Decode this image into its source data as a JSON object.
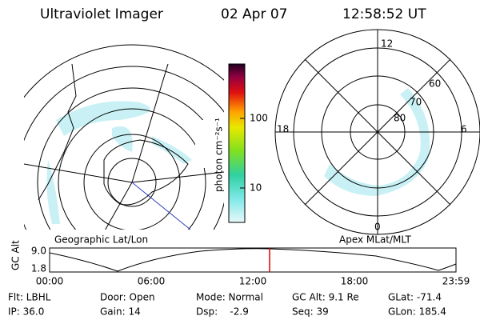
{
  "header": {
    "title": "Ultraviolet Imager",
    "date": "02 Apr 07",
    "time": "12:58:52 UT"
  },
  "colorbar": {
    "label": "photon cm⁻²s⁻¹",
    "ticks": [
      "100",
      "10"
    ]
  },
  "maps": {
    "left_label": "Geographic Lat/Lon",
    "right_label": "Apex MLat/MLT",
    "mlt_labels": [
      "12",
      "18",
      "6",
      "0"
    ],
    "mlat_labels": [
      "60",
      "70",
      "80"
    ]
  },
  "orbit": {
    "y_label": "GC Alt",
    "y_ticks": [
      "9.0",
      "1.8"
    ],
    "x_ticks": [
      "00:00",
      "06:00",
      "12:00",
      "18:00",
      "23:59"
    ]
  },
  "info": {
    "rows": [
      [
        "Flt: LBHL",
        "Door: Open",
        "Mode: Normal",
        "GC Alt: 9.1 Re",
        "GLat: -71.4"
      ],
      [
        "IP: 36.0",
        "Gain: 14",
        "Dsp:    -2.9",
        "Seq: 39",
        "GLon: 185.4"
      ]
    ]
  }
}
